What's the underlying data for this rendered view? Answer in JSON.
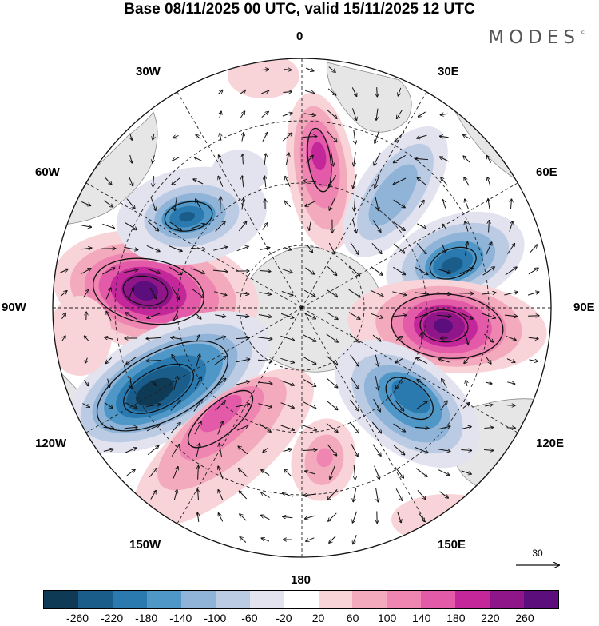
{
  "header": {
    "title": "Base 08/11/2025 00 UTC, valid 15/11/2025 12 UTC",
    "brand": "MODES",
    "brand_mark": "©"
  },
  "map": {
    "projection": "south-polar-stereographic",
    "longitude_labels": {
      "lon_0": "0",
      "lon_30e": "30E",
      "lon_60e": "60E",
      "lon_90e": "90E",
      "lon_120e": "120E",
      "lon_150e": "150E",
      "lon_180": "180",
      "lon_150w": "150W",
      "lon_120w": "120W",
      "lon_90w": "90W",
      "lon_60w": "60W",
      "lon_30w": "30W"
    },
    "reference_vector": {
      "value": "30"
    }
  },
  "colorbar": {
    "colors": [
      "#0f3a56",
      "#1a5d8a",
      "#2a7ab0",
      "#4f97c7",
      "#8fb4d8",
      "#bccbe4",
      "#e3e3f0",
      "#ffffff",
      "#f8d3d8",
      "#f4aabd",
      "#ef86b2",
      "#e25aa8",
      "#c3279a",
      "#8f1688",
      "#5c0e7c"
    ],
    "ticks": {
      "t0": "-260",
      "t1": "-220",
      "t2": "-180",
      "t3": "-140",
      "t4": "-100",
      "t5": "-60",
      "t6": "-20",
      "t7": "20",
      "t8": "60",
      "t9": "100",
      "t10": "140",
      "t11": "180",
      "t12": "220",
      "t13": "260"
    }
  }
}
